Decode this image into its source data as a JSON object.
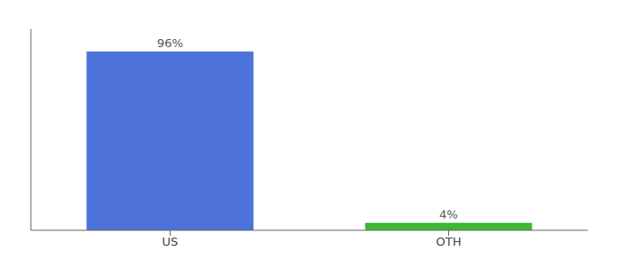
{
  "chart_data": {
    "type": "bar",
    "categories": [
      "US",
      "OTH"
    ],
    "values": [
      96,
      4
    ],
    "value_labels": [
      "96%",
      "4%"
    ],
    "colors": [
      "#4d72d9",
      "#3cb832"
    ],
    "ylim": [
      0,
      108
    ],
    "data_labels": true,
    "tick_labels": "x",
    "grid": false
  }
}
